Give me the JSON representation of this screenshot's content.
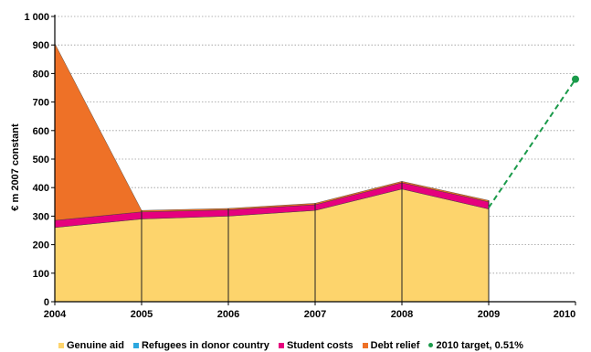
{
  "chart_data": {
    "type": "area",
    "x": [
      "2004",
      "2005",
      "2006",
      "2007",
      "2008",
      "2009",
      "2010"
    ],
    "ylabel": "€ m 2007 constant",
    "ylim": [
      0,
      1000
    ],
    "yticks": [
      "0",
      "100",
      "200",
      "300",
      "400",
      "500",
      "600",
      "700",
      "800",
      "900",
      "1 000"
    ],
    "ytick_values": [
      0,
      100,
      200,
      300,
      400,
      500,
      600,
      700,
      800,
      900,
      1000
    ],
    "grid": true,
    "legend_position": "bottom",
    "stacked": true,
    "series": [
      {
        "name": "Genuine aid",
        "color": "#fdd46c",
        "values": [
          260,
          290,
          300,
          320,
          395,
          325,
          null
        ]
      },
      {
        "name": "Refugees in donor country",
        "color": "#2ca7df",
        "values": [
          0,
          0,
          0,
          0,
          0,
          0,
          null
        ]
      },
      {
        "name": "Student costs",
        "color": "#e6007e",
        "values": [
          25,
          25,
          22,
          20,
          22,
          25,
          null
        ]
      },
      {
        "name": "Debt relief",
        "color": "#ee7127",
        "values": [
          620,
          5,
          5,
          5,
          5,
          5,
          null
        ]
      }
    ],
    "target": {
      "name": "2010 target, 0.51%",
      "color": "#1a9a4a",
      "from": [
        "2009",
        330
      ],
      "to": [
        "2010",
        780
      ]
    }
  }
}
